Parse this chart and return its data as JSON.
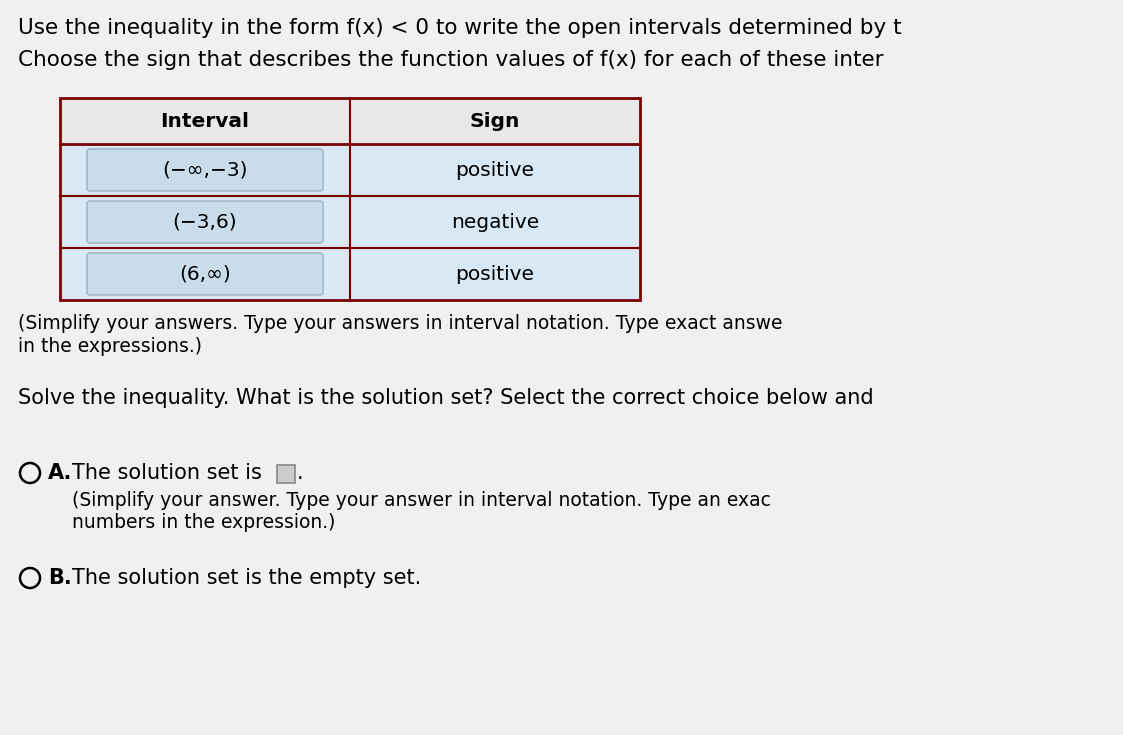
{
  "background_color": "#f0f0f0",
  "title_lines": [
    "Use the inequality in the form f(x) < 0 to write the open intervals determined by t",
    "Choose the sign that describes the function values of f(x) for each of these inter"
  ],
  "table": {
    "headers": [
      "Interval",
      "Sign"
    ],
    "rows": [
      [
        "(−∞,−3)",
        "positive"
      ],
      [
        "(−3,6)",
        "negative"
      ],
      [
        "(6,∞)",
        "positive"
      ]
    ],
    "border_color": "#7a0000",
    "row_bg": "#d8e8f4",
    "inner_box_bg": "#c8dcea",
    "inner_box_border": "#9ab0c0",
    "header_bg": "#e8e8e8",
    "text_color": "#000000"
  },
  "note_lines": [
    "(Simplify your answers. Type your answers in interval notation. Type exact answe",
    "in the expressions.)"
  ],
  "solve_line": "Solve the inequality. What is the solution set? Select the correct choice below and",
  "choice_A_label": "A.",
  "choice_A_main": "The solution set is",
  "choice_A_sub1": "(Simplify your answer. Type your answer in interval notation. Type an exac",
  "choice_A_sub2": "numbers in the expression.)",
  "choice_B_label": "B.",
  "choice_B": "The solution set is the empty set.",
  "font_size_title": 15.5,
  "font_size_body": 15,
  "font_size_table": 14.5,
  "font_size_small": 13.5
}
